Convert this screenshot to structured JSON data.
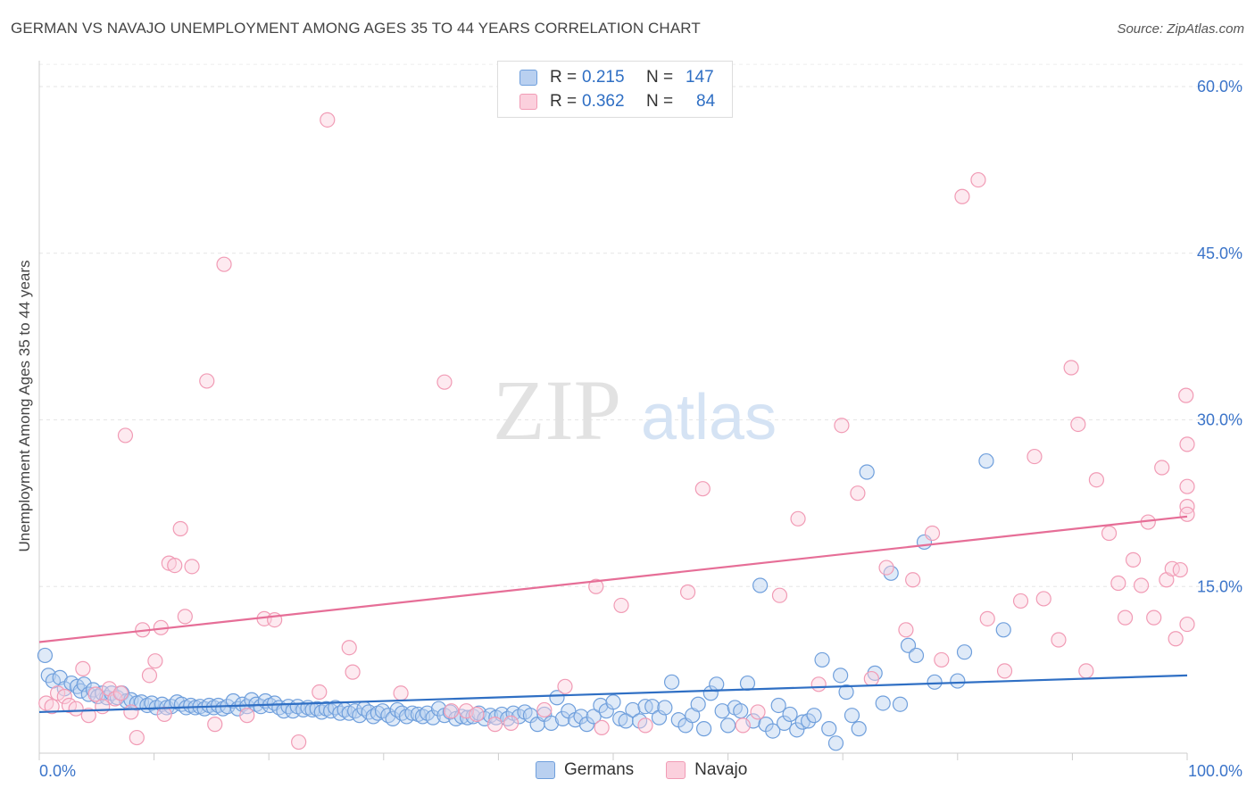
{
  "title": "GERMAN VS NAVAJO UNEMPLOYMENT AMONG AGES 35 TO 44 YEARS CORRELATION CHART",
  "source": "Source: ZipAtlas.com",
  "watermark": {
    "zip": "ZIP",
    "atlas": "atlas"
  },
  "legend": {
    "r_label": "R =",
    "n_label": "N =",
    "rows": [
      {
        "r": "0.215",
        "n": "147"
      },
      {
        "r": "0.362",
        "n": "84"
      }
    ]
  },
  "chart_data": {
    "type": "scatter",
    "title": "GERMAN VS NAVAJO UNEMPLOYMENT AMONG AGES 35 TO 44 YEARS CORRELATION CHART",
    "xlabel": "",
    "ylabel": "Unemployment Among Ages 35 to 44 years",
    "xlim": [
      0,
      100
    ],
    "ylim": [
      0,
      63
    ],
    "x_tick_labels": [
      "0.0%",
      "100.0%"
    ],
    "y_ticks": [
      15,
      30,
      45,
      60
    ],
    "y_tick_labels": [
      "15.0%",
      "30.0%",
      "45.0%",
      "60.0%"
    ],
    "grid": true,
    "legend_placement": "top-center and bottom",
    "colors": {
      "germans": "#6f9fdc",
      "navajo": "#f19bb5",
      "germans_line": "#2f6fc4",
      "navajo_line": "#e66e97",
      "tick_text": "#3b74c9"
    },
    "series": [
      {
        "name": "Germans",
        "r": 0.215,
        "n": 147,
        "trend": [
          [
            0,
            3.7
          ],
          [
            100,
            7.0
          ]
        ],
        "points": [
          [
            0.5,
            8.8
          ],
          [
            0.8,
            7.0
          ],
          [
            1.2,
            6.5
          ],
          [
            1.8,
            6.8
          ],
          [
            2.2,
            5.8
          ],
          [
            2.8,
            6.3
          ],
          [
            3.3,
            6.0
          ],
          [
            3.6,
            5.6
          ],
          [
            3.9,
            6.2
          ],
          [
            4.3,
            5.3
          ],
          [
            4.7,
            5.7
          ],
          [
            5.1,
            5.1
          ],
          [
            5.5,
            5.4
          ],
          [
            5.9,
            5.0
          ],
          [
            6.3,
            5.4
          ],
          [
            6.8,
            5.0
          ],
          [
            7.2,
            5.4
          ],
          [
            7.6,
            4.7
          ],
          [
            8.0,
            4.8
          ],
          [
            8.5,
            4.5
          ],
          [
            8.9,
            4.6
          ],
          [
            9.4,
            4.3
          ],
          [
            9.8,
            4.5
          ],
          [
            10.2,
            4.1
          ],
          [
            10.7,
            4.4
          ],
          [
            11.1,
            4.1
          ],
          [
            11.5,
            4.2
          ],
          [
            12.0,
            4.6
          ],
          [
            12.4,
            4.4
          ],
          [
            12.8,
            4.1
          ],
          [
            13.2,
            4.3
          ],
          [
            13.6,
            4.1
          ],
          [
            14.0,
            4.2
          ],
          [
            14.4,
            4.0
          ],
          [
            14.8,
            4.3
          ],
          [
            15.2,
            4.1
          ],
          [
            15.6,
            4.3
          ],
          [
            16.0,
            4.0
          ],
          [
            16.4,
            4.2
          ],
          [
            16.9,
            4.7
          ],
          [
            17.3,
            4.0
          ],
          [
            17.7,
            4.4
          ],
          [
            18.1,
            4.2
          ],
          [
            18.5,
            4.8
          ],
          [
            18.9,
            4.4
          ],
          [
            19.3,
            4.2
          ],
          [
            19.7,
            4.7
          ],
          [
            20.1,
            4.3
          ],
          [
            20.5,
            4.5
          ],
          [
            20.9,
            4.1
          ],
          [
            21.3,
            3.8
          ],
          [
            21.7,
            4.2
          ],
          [
            22.1,
            3.8
          ],
          [
            22.5,
            4.2
          ],
          [
            23.0,
            3.9
          ],
          [
            23.4,
            4.1
          ],
          [
            23.8,
            3.9
          ],
          [
            24.2,
            4.0
          ],
          [
            24.6,
            3.7
          ],
          [
            25.0,
            4.0
          ],
          [
            25.4,
            3.8
          ],
          [
            25.8,
            4.1
          ],
          [
            26.2,
            3.6
          ],
          [
            26.6,
            3.9
          ],
          [
            27.0,
            3.6
          ],
          [
            27.5,
            3.8
          ],
          [
            27.9,
            3.4
          ],
          [
            28.3,
            4.0
          ],
          [
            28.7,
            3.7
          ],
          [
            29.1,
            3.3
          ],
          [
            29.5,
            3.6
          ],
          [
            29.9,
            3.8
          ],
          [
            30.4,
            3.4
          ],
          [
            30.8,
            3.1
          ],
          [
            31.2,
            3.9
          ],
          [
            31.6,
            3.6
          ],
          [
            32.0,
            3.3
          ],
          [
            32.5,
            3.6
          ],
          [
            33.0,
            3.5
          ],
          [
            33.4,
            3.3
          ],
          [
            33.8,
            3.6
          ],
          [
            34.3,
            3.2
          ],
          [
            34.8,
            4.0
          ],
          [
            35.3,
            3.4
          ],
          [
            35.8,
            3.7
          ],
          [
            36.3,
            3.1
          ],
          [
            36.8,
            3.3
          ],
          [
            37.3,
            3.2
          ],
          [
            37.8,
            3.3
          ],
          [
            38.3,
            3.6
          ],
          [
            38.8,
            3.1
          ],
          [
            39.3,
            3.4
          ],
          [
            39.8,
            3.2
          ],
          [
            40.3,
            3.5
          ],
          [
            40.8,
            3.1
          ],
          [
            41.3,
            3.6
          ],
          [
            41.8,
            3.3
          ],
          [
            42.3,
            3.7
          ],
          [
            42.8,
            3.4
          ],
          [
            43.4,
            2.6
          ],
          [
            44.0,
            3.5
          ],
          [
            44.6,
            2.7
          ],
          [
            45.1,
            5.0
          ],
          [
            45.6,
            3.1
          ],
          [
            46.1,
            3.8
          ],
          [
            46.7,
            3.0
          ],
          [
            47.2,
            3.3
          ],
          [
            47.7,
            2.6
          ],
          [
            48.3,
            3.3
          ],
          [
            48.9,
            4.3
          ],
          [
            49.4,
            3.8
          ],
          [
            50.0,
            4.6
          ],
          [
            50.6,
            3.1
          ],
          [
            51.1,
            2.9
          ],
          [
            51.7,
            3.9
          ],
          [
            52.3,
            2.9
          ],
          [
            52.8,
            4.2
          ],
          [
            53.4,
            4.2
          ],
          [
            54.0,
            3.2
          ],
          [
            54.5,
            4.1
          ],
          [
            55.1,
            6.4
          ],
          [
            55.7,
            3.0
          ],
          [
            56.3,
            2.5
          ],
          [
            56.9,
            3.4
          ],
          [
            57.4,
            4.4
          ],
          [
            57.9,
            2.2
          ],
          [
            58.5,
            5.4
          ],
          [
            59.0,
            6.2
          ],
          [
            59.5,
            3.8
          ],
          [
            60.0,
            2.5
          ],
          [
            60.6,
            4.1
          ],
          [
            61.1,
            3.8
          ],
          [
            61.7,
            6.3
          ],
          [
            62.2,
            2.9
          ],
          [
            62.8,
            15.1
          ],
          [
            63.3,
            2.6
          ],
          [
            63.9,
            2.0
          ],
          [
            64.4,
            4.3
          ],
          [
            64.9,
            2.7
          ],
          [
            65.4,
            3.5
          ],
          [
            66.0,
            2.1
          ],
          [
            66.5,
            2.8
          ],
          [
            67.0,
            2.9
          ],
          [
            67.5,
            3.4
          ],
          [
            68.2,
            8.4
          ],
          [
            68.8,
            2.2
          ],
          [
            69.4,
            0.9
          ],
          [
            69.8,
            7.0
          ],
          [
            70.3,
            5.5
          ],
          [
            70.8,
            3.4
          ],
          [
            71.4,
            2.2
          ],
          [
            72.1,
            25.3
          ],
          [
            72.8,
            7.2
          ],
          [
            73.5,
            4.5
          ],
          [
            74.2,
            16.2
          ],
          [
            75.0,
            4.4
          ],
          [
            75.7,
            9.7
          ],
          [
            76.4,
            8.8
          ],
          [
            77.1,
            19.0
          ],
          [
            78.0,
            6.4
          ],
          [
            80.0,
            6.5
          ],
          [
            80.6,
            9.1
          ],
          [
            84.0,
            11.1
          ],
          [
            82.5,
            26.3
          ]
        ]
      },
      {
        "name": "Navajo",
        "r": 0.362,
        "n": 84,
        "trend": [
          [
            0,
            10.0
          ],
          [
            100,
            21.3
          ]
        ],
        "points": [
          [
            0.6,
            4.5
          ],
          [
            1.1,
            4.2
          ],
          [
            1.6,
            5.4
          ],
          [
            2.2,
            5.1
          ],
          [
            2.6,
            4.3
          ],
          [
            3.2,
            4.0
          ],
          [
            3.8,
            7.6
          ],
          [
            4.3,
            3.4
          ],
          [
            4.9,
            5.3
          ],
          [
            5.5,
            4.2
          ],
          [
            6.1,
            5.8
          ],
          [
            6.6,
            4.9
          ],
          [
            7.1,
            5.4
          ],
          [
            7.5,
            28.6
          ],
          [
            8.0,
            3.7
          ],
          [
            8.5,
            1.4
          ],
          [
            9.0,
            11.1
          ],
          [
            9.6,
            7.0
          ],
          [
            10.1,
            8.3
          ],
          [
            10.6,
            11.3
          ],
          [
            10.9,
            3.5
          ],
          [
            11.3,
            17.1
          ],
          [
            11.8,
            16.9
          ],
          [
            12.3,
            20.2
          ],
          [
            12.7,
            12.3
          ],
          [
            13.3,
            16.8
          ],
          [
            14.6,
            33.5
          ],
          [
            15.3,
            2.6
          ],
          [
            16.1,
            44.0
          ],
          [
            18.1,
            3.4
          ],
          [
            19.6,
            12.1
          ],
          [
            20.5,
            12.0
          ],
          [
            22.6,
            1.0
          ],
          [
            24.4,
            5.5
          ],
          [
            25.1,
            57.0
          ],
          [
            27.0,
            9.5
          ],
          [
            27.3,
            7.3
          ],
          [
            31.5,
            5.4
          ],
          [
            35.3,
            33.4
          ],
          [
            35.9,
            3.8
          ],
          [
            37.2,
            3.8
          ],
          [
            38.1,
            3.5
          ],
          [
            39.7,
            2.6
          ],
          [
            41.1,
            2.7
          ],
          [
            44.0,
            3.9
          ],
          [
            45.8,
            6.0
          ],
          [
            48.5,
            15.0
          ],
          [
            49.0,
            2.3
          ],
          [
            50.7,
            13.3
          ],
          [
            52.8,
            2.5
          ],
          [
            56.5,
            14.5
          ],
          [
            57.8,
            23.8
          ],
          [
            61.3,
            2.5
          ],
          [
            62.6,
            3.7
          ],
          [
            64.5,
            14.2
          ],
          [
            66.1,
            21.1
          ],
          [
            67.9,
            6.2
          ],
          [
            69.9,
            29.5
          ],
          [
            71.3,
            23.4
          ],
          [
            72.5,
            6.7
          ],
          [
            73.8,
            16.7
          ],
          [
            75.5,
            11.1
          ],
          [
            76.1,
            15.6
          ],
          [
            77.8,
            19.8
          ],
          [
            78.6,
            8.4
          ],
          [
            80.4,
            50.1
          ],
          [
            81.8,
            51.6
          ],
          [
            82.6,
            12.1
          ],
          [
            84.1,
            7.4
          ],
          [
            85.5,
            13.7
          ],
          [
            86.7,
            26.7
          ],
          [
            87.5,
            13.9
          ],
          [
            88.8,
            10.2
          ],
          [
            89.9,
            34.7
          ],
          [
            90.5,
            29.6
          ],
          [
            91.2,
            7.4
          ],
          [
            92.1,
            24.6
          ],
          [
            93.2,
            19.8
          ],
          [
            94.0,
            15.3
          ],
          [
            94.6,
            12.2
          ],
          [
            95.3,
            17.4
          ],
          [
            96.0,
            15.1
          ],
          [
            96.6,
            20.8
          ],
          [
            97.1,
            12.2
          ],
          [
            97.8,
            25.7
          ],
          [
            98.2,
            15.6
          ],
          [
            98.7,
            16.6
          ],
          [
            99.0,
            10.3
          ],
          [
            99.4,
            16.5
          ],
          [
            99.9,
            32.2
          ],
          [
            100.0,
            27.8
          ],
          [
            100.0,
            22.2
          ],
          [
            100.0,
            21.5
          ],
          [
            100.0,
            11.6
          ],
          [
            100.0,
            24.0
          ]
        ]
      }
    ]
  }
}
